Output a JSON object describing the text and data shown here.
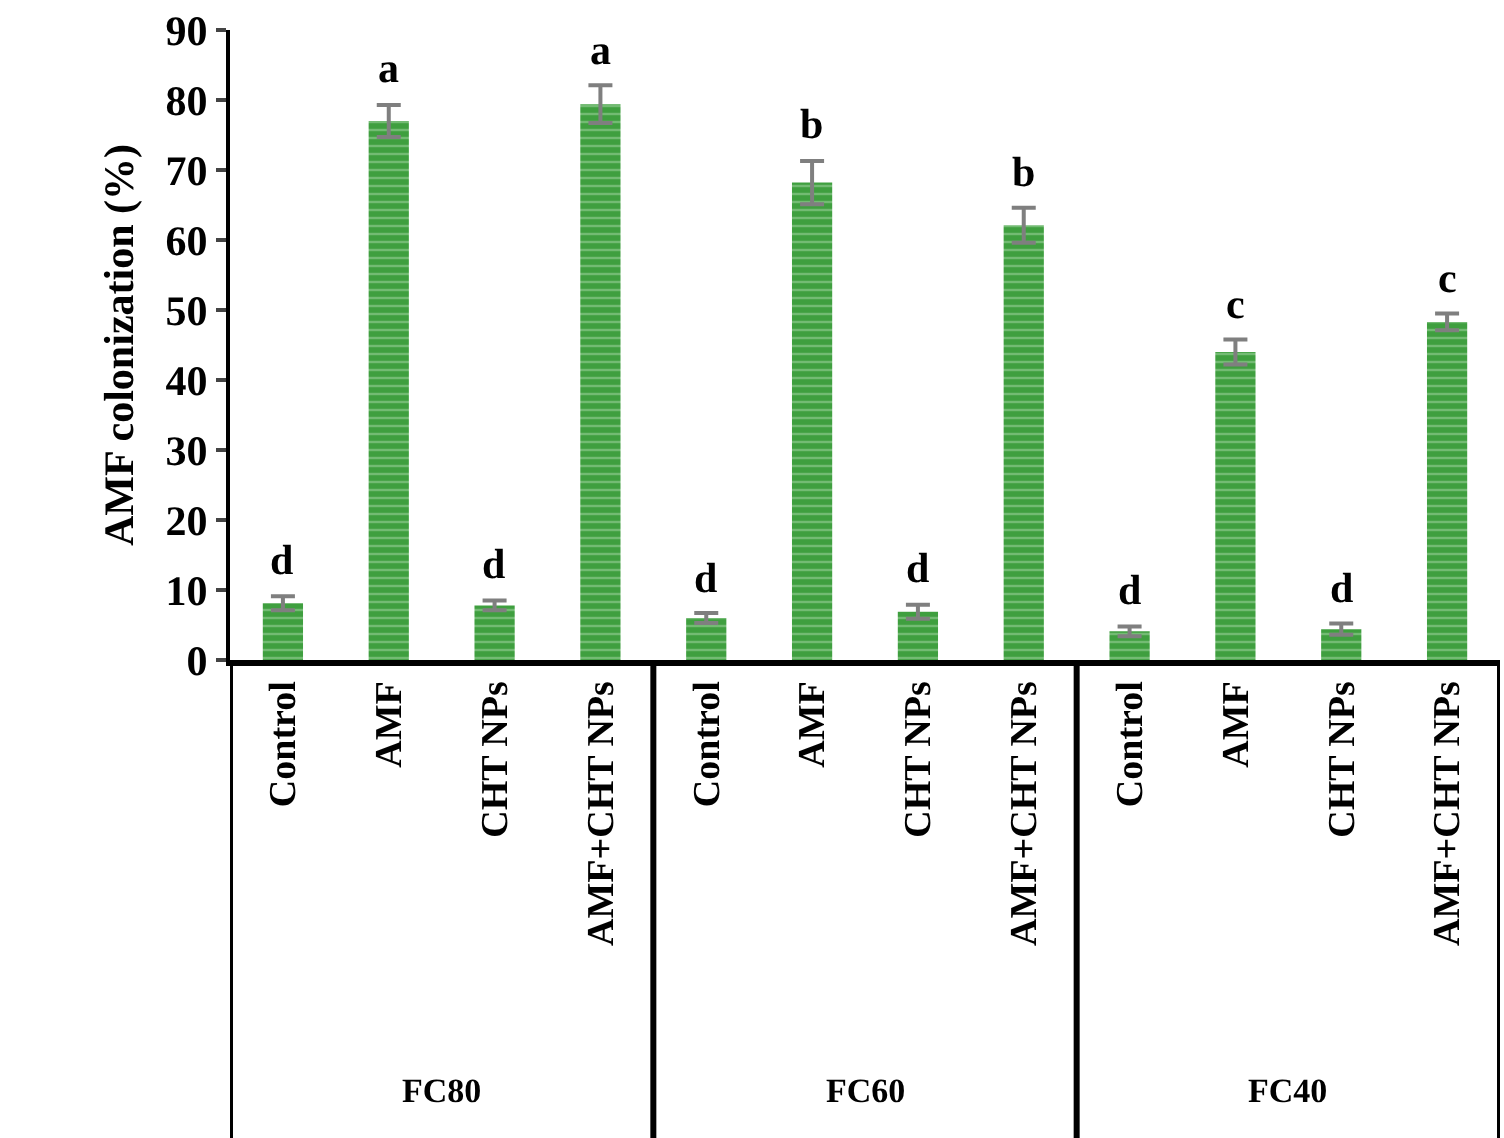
{
  "chart_data": {
    "type": "bar",
    "ylabel": "AMF colonization (%)",
    "categories": [
      "Control",
      "AMF",
      "CHT NPs",
      "AMF+CHT NPs",
      "Control",
      "AMF",
      "CHT NPs",
      "AMF+CHT NPs",
      "Control",
      "AMF",
      "CHT NPs",
      "AMF+CHT NPs"
    ],
    "values": [
      8.1,
      77.0,
      7.8,
      79.4,
      6.0,
      68.2,
      6.9,
      62.1,
      4.1,
      44.0,
      4.4,
      48.3
    ],
    "errors": [
      1.0,
      2.3,
      0.7,
      2.7,
      0.7,
      3.1,
      1.0,
      2.5,
      0.7,
      1.8,
      0.8,
      1.2
    ],
    "value_labels": [
      "d",
      "a",
      "d",
      "a",
      "d",
      "b",
      "d",
      "b",
      "d",
      "c",
      "d",
      "c"
    ],
    "color": "#3f9f3f",
    "annotations": [
      "FC80",
      "FC60",
      "FC40"
    ],
    "ylim": [
      0,
      90
    ],
    "yticks": [
      0,
      10,
      20,
      30,
      40,
      50,
      60,
      70,
      80,
      90
    ]
  }
}
